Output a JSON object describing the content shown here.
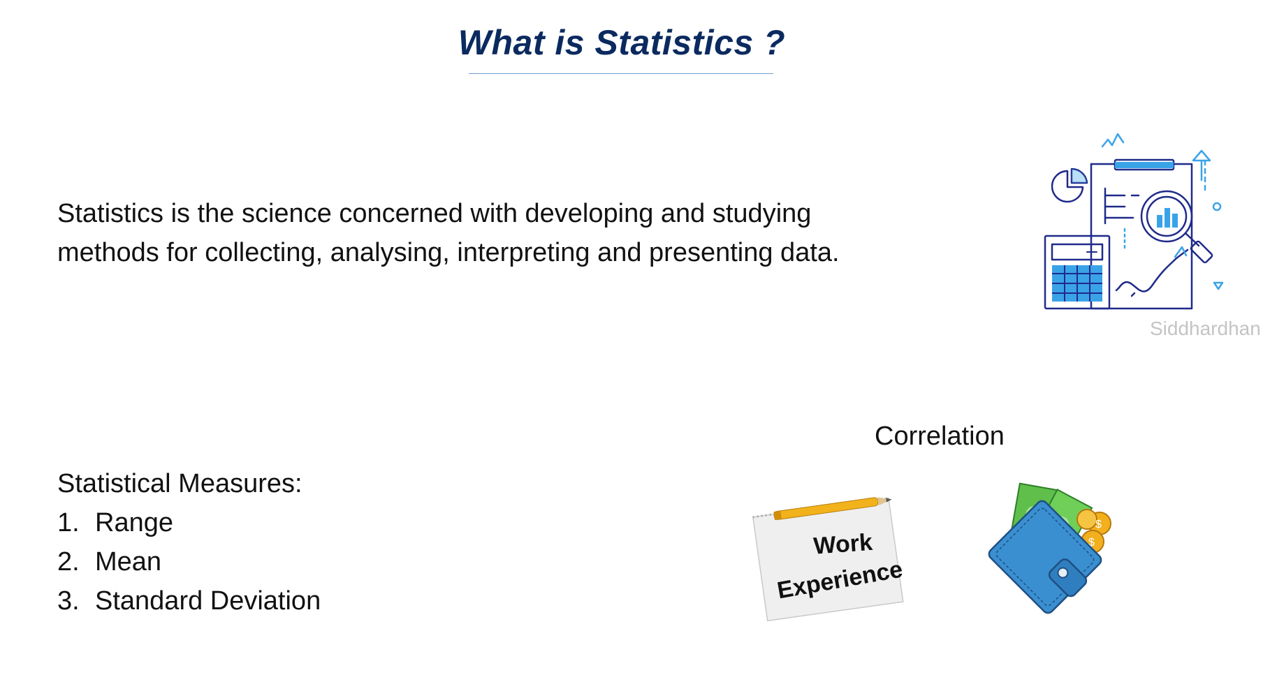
{
  "slide": {
    "title": "What is  Statistics ?",
    "definition": {
      "line1": "Statistics is the science concerned with developing and studying",
      "line2": "methods for collecting, analysing, interpreting and presenting data."
    },
    "watermark": "Siddhardhan",
    "measures": {
      "heading": "Statistical Measures:",
      "items": [
        {
          "num": "1.",
          "label": "Range"
        },
        {
          "num": "2.",
          "label": "Mean"
        },
        {
          "num": "3.",
          "label": "Standard Deviation"
        }
      ]
    },
    "correlation": {
      "label": "Correlation",
      "notepad_line1": "Work",
      "notepad_line2": "Experience"
    }
  },
  "colors": {
    "title": "#0b2a5f",
    "icon_navy": "#1f2a8a",
    "icon_blue": "#3aa3e8",
    "wallet_blue": "#3a8fd0",
    "money_green": "#5fbf4a",
    "coin_gold": "#f2b01e"
  },
  "icons": [
    "data-analysis-icon",
    "notepad-pencil-icon",
    "wallet-money-icon"
  ]
}
